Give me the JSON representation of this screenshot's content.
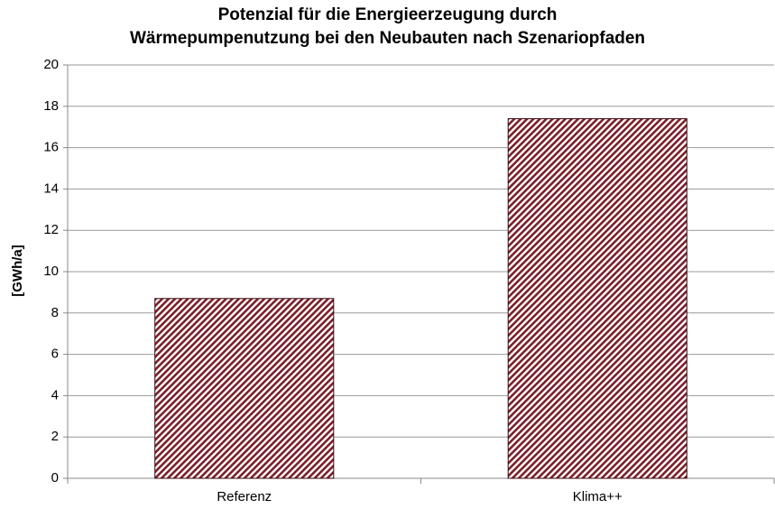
{
  "chart_data": {
    "type": "bar",
    "title": "Potenzial für die Energieerzeugung durch\nWärmepumpenutzung bei den Neubauten nach Szenariopfaden",
    "y_label": "[GWh/a]",
    "categories": [
      "Referenz",
      "Klima++"
    ],
    "values": [
      8.7,
      17.4
    ],
    "color": "#7a1f2a",
    "ylim": [
      0,
      20
    ],
    "yticks": [
      0,
      2,
      4,
      6,
      8,
      10,
      12,
      14,
      16,
      18,
      20
    ],
    "grid": true
  }
}
